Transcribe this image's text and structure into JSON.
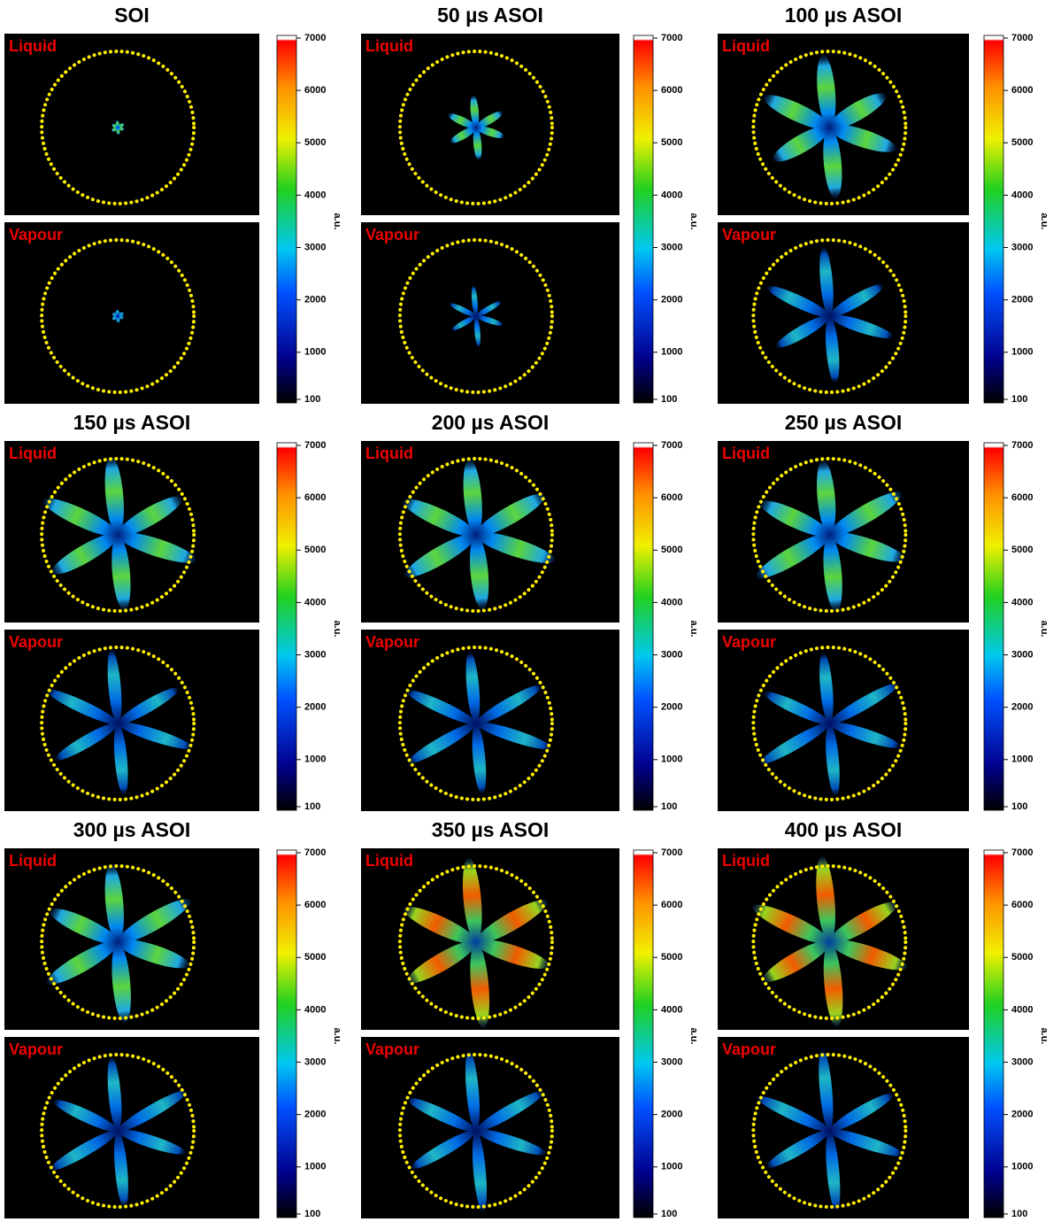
{
  "panels": [
    {
      "title": "SOI"
    },
    {
      "title": "50 µs ASOI"
    },
    {
      "title": "100 µs ASOI"
    },
    {
      "title": "150 µs ASOI"
    },
    {
      "title": "200 µs ASOI"
    },
    {
      "title": "250 µs ASOI"
    },
    {
      "title": "300 µs ASOI"
    },
    {
      "title": "350 µs ASOI"
    },
    {
      "title": "400 µs ASOI"
    }
  ],
  "image_labels": [
    "Liquid",
    "Vapour"
  ],
  "colorbar": {
    "label": "a.u.",
    "range": [
      100,
      7000
    ],
    "ticks": [
      100,
      1000,
      2000,
      3000,
      4000,
      5000,
      6000,
      7000
    ]
  }
}
